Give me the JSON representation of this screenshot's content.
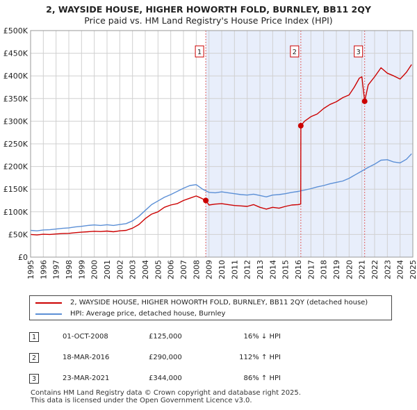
{
  "header": {
    "title_line1": "2, WAYSIDE HOUSE, HIGHER HOWORTH FOLD, BURNLEY, BB11 2QY",
    "title_line2": "Price paid vs. HM Land Registry's House Price Index (HPI)"
  },
  "chart_data": {
    "type": "line",
    "title": "Price paid vs. HM Land Registry's House Price Index (HPI)",
    "xlabel": "",
    "ylabel": "",
    "xlim": [
      1995,
      2025
    ],
    "ylim": [
      0,
      500000
    ],
    "y_ticks": [
      0,
      50000,
      100000,
      150000,
      200000,
      250000,
      300000,
      350000,
      400000,
      450000,
      500000
    ],
    "y_tick_labels": [
      "£0",
      "£50K",
      "£100K",
      "£150K",
      "£200K",
      "£250K",
      "£300K",
      "£350K",
      "£400K",
      "£450K",
      "£500K"
    ],
    "x_ticks": [
      "1995",
      "1996",
      "1997",
      "1998",
      "1999",
      "2000",
      "2001",
      "2002",
      "2003",
      "2004",
      "2005",
      "2006",
      "2007",
      "2008",
      "2009",
      "2010",
      "2011",
      "2012",
      "2013",
      "2014",
      "2015",
      "2016",
      "2017",
      "2018",
      "2019",
      "2020",
      "2021",
      "2022",
      "2023",
      "2024",
      "2025"
    ],
    "grid": true,
    "series": [
      {
        "name": "2, WAYSIDE HOUSE, HIGHER HOWORTH FOLD, BURNLEY, BB11 2QY (detached house)",
        "color": "#cc0000",
        "x": [
          1995.0,
          1995.5,
          1996.0,
          1996.5,
          1997.0,
          1997.5,
          1998.0,
          1998.5,
          1999.0,
          1999.5,
          2000.0,
          2000.5,
          2001.0,
          2001.5,
          2002.0,
          2002.5,
          2003.0,
          2003.5,
          2004.0,
          2004.5,
          2005.0,
          2005.5,
          2006.0,
          2006.5,
          2007.0,
          2007.5,
          2008.0,
          2008.4,
          2008.75,
          2009.0,
          2009.5,
          2010.0,
          2010.5,
          2011.0,
          2011.5,
          2012.0,
          2012.5,
          2013.0,
          2013.5,
          2014.0,
          2014.5,
          2015.0,
          2015.5,
          2016.0,
          2016.2,
          2016.21,
          2016.5,
          2017.0,
          2017.5,
          2018.0,
          2018.5,
          2019.0,
          2019.5,
          2020.0,
          2020.4,
          2020.8,
          2021.0,
          2021.22,
          2021.5,
          2022.0,
          2022.5,
          2023.0,
          2023.5,
          2024.0,
          2024.5,
          2024.9
        ],
        "values": [
          50000,
          49000,
          50500,
          50000,
          51000,
          52000,
          52500,
          54000,
          55000,
          56000,
          57000,
          56500,
          57500,
          56000,
          58000,
          59000,
          64000,
          72000,
          85000,
          95000,
          100000,
          110000,
          115000,
          118000,
          125000,
          130000,
          135000,
          130000,
          125000,
          115000,
          117000,
          118000,
          116000,
          114000,
          113000,
          112000,
          116000,
          110000,
          106000,
          110000,
          108000,
          112000,
          115000,
          116000,
          117000,
          290000,
          300000,
          310000,
          316000,
          328000,
          337000,
          343000,
          352000,
          358000,
          375000,
          395000,
          398000,
          344000,
          380000,
          398000,
          418000,
          406000,
          400000,
          393000,
          408000,
          425000
        ]
      },
      {
        "name": "HPI: Average price, detached house, Burnley",
        "color": "#5b8fd6",
        "x": [
          1995.0,
          1995.5,
          1996.0,
          1996.5,
          1997.0,
          1997.5,
          1998.0,
          1998.5,
          1999.0,
          1999.5,
          2000.0,
          2000.5,
          2001.0,
          2001.5,
          2002.0,
          2002.5,
          2003.0,
          2003.5,
          2004.0,
          2004.5,
          2005.0,
          2005.5,
          2006.0,
          2006.5,
          2007.0,
          2007.5,
          2008.0,
          2008.5,
          2009.0,
          2009.5,
          2010.0,
          2010.5,
          2011.0,
          2011.5,
          2012.0,
          2012.5,
          2013.0,
          2013.5,
          2014.0,
          2014.5,
          2015.0,
          2015.5,
          2016.0,
          2016.5,
          2017.0,
          2017.5,
          2018.0,
          2018.5,
          2019.0,
          2019.5,
          2020.0,
          2020.5,
          2021.0,
          2021.5,
          2022.0,
          2022.5,
          2023.0,
          2023.5,
          2024.0,
          2024.5,
          2024.9
        ],
        "values": [
          59000,
          58000,
          60000,
          60500,
          62000,
          63500,
          64500,
          66500,
          68000,
          70000,
          71000,
          70000,
          71500,
          70000,
          72000,
          74000,
          80000,
          90000,
          103000,
          116000,
          124000,
          132000,
          138000,
          145000,
          152000,
          158000,
          160000,
          150000,
          143000,
          142000,
          144000,
          142000,
          140000,
          138000,
          137000,
          139000,
          136000,
          133000,
          137000,
          138000,
          140000,
          143000,
          145000,
          148000,
          151000,
          155000,
          158000,
          162000,
          165000,
          168000,
          174000,
          182000,
          190000,
          198000,
          205000,
          214000,
          215000,
          210000,
          208000,
          216000,
          228000
        ]
      }
    ],
    "sales": [
      {
        "num": "1",
        "x": 2008.75,
        "value": 125000
      },
      {
        "num": "2",
        "x": 2016.21,
        "value": 290000
      },
      {
        "num": "3",
        "x": 2021.22,
        "value": 344000
      }
    ]
  },
  "legend": {
    "property_label": "2, WAYSIDE HOUSE, HIGHER HOWORTH FOLD, BURNLEY, BB11 2QY (detached house)",
    "hpi_label": "HPI: Average price, detached house, Burnley"
  },
  "transactions": [
    {
      "num": "1",
      "date": "01-OCT-2008",
      "price": "£125,000",
      "hpi": "16% ↓ HPI"
    },
    {
      "num": "2",
      "date": "18-MAR-2016",
      "price": "£290,000",
      "hpi": "112% ↑ HPI"
    },
    {
      "num": "3",
      "date": "23-MAR-2021",
      "price": "£344,000",
      "hpi": "86% ↑ HPI"
    }
  ],
  "footer": {
    "line1": "Contains HM Land Registry data © Crown copyright and database right 2025.",
    "line2": "This data is licensed under the Open Government Licence v3.0."
  }
}
